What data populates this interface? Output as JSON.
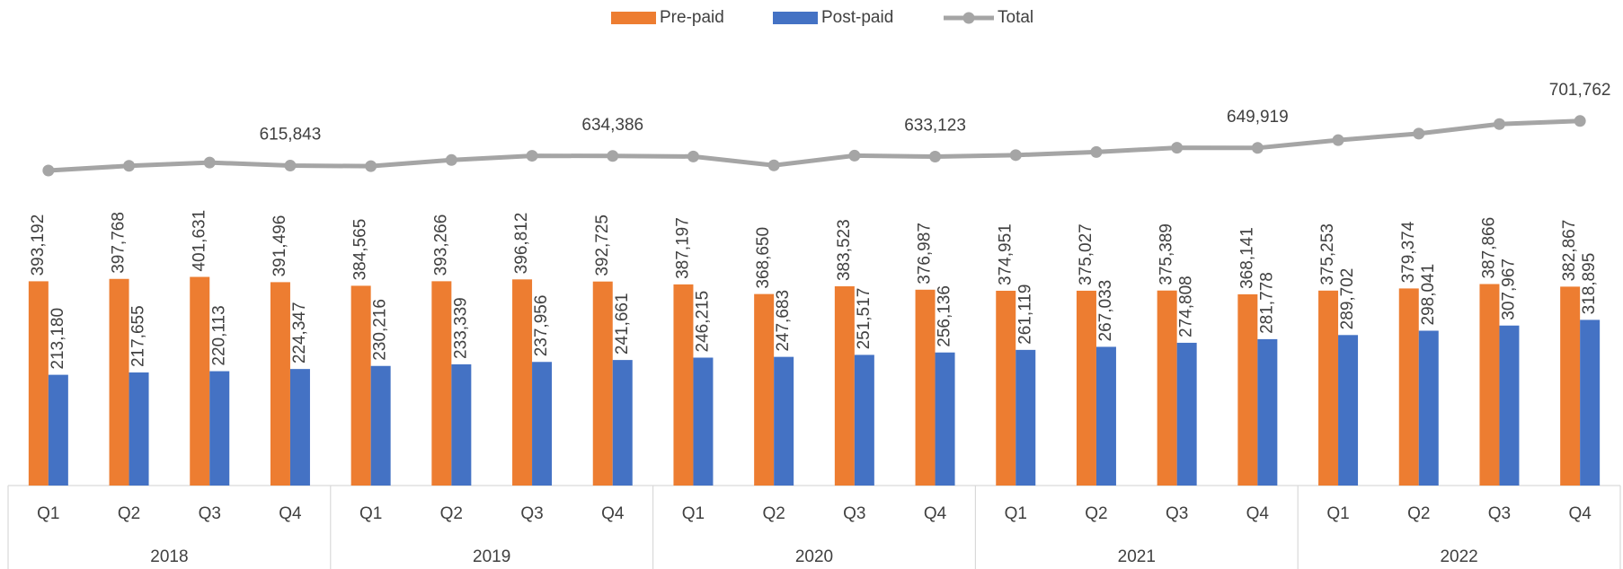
{
  "chart_data": {
    "type": "bar_line",
    "categories": [
      "Q1",
      "Q2",
      "Q3",
      "Q4",
      "Q1",
      "Q2",
      "Q3",
      "Q4",
      "Q1",
      "Q2",
      "Q3",
      "Q4",
      "Q1",
      "Q2",
      "Q3",
      "Q4",
      "Q1",
      "Q2",
      "Q3",
      "Q4"
    ],
    "groups": [
      "2018",
      "2019",
      "2020",
      "2021",
      "2022"
    ],
    "ylim": [
      0,
      850000
    ],
    "legend": "top",
    "series": [
      {
        "name": "Pre-paid",
        "kind": "bar",
        "color": "#ED7D31",
        "values": [
          393192,
          397768,
          401631,
          391496,
          384565,
          393266,
          396812,
          392725,
          387197,
          368650,
          383523,
          376987,
          374951,
          375027,
          375389,
          368141,
          375253,
          379374,
          387866,
          382867
        ],
        "value_labels": [
          "393,192",
          "397,768",
          "401,631",
          "391,496",
          "384,565",
          "393,266",
          "396,812",
          "392,725",
          "387,197",
          "368,650",
          "383,523",
          "376,987",
          "374,951",
          "375,027",
          "375,389",
          "368,141",
          "375,253",
          "379,374",
          "387,866",
          "382,867"
        ]
      },
      {
        "name": "Post-paid",
        "kind": "bar",
        "color": "#4472C4",
        "values": [
          213180,
          217655,
          220113,
          224347,
          230216,
          233339,
          237956,
          241661,
          246215,
          247683,
          251517,
          256136,
          261119,
          267033,
          274808,
          281778,
          289702,
          298041,
          307967,
          318895
        ],
        "value_labels": [
          "213,180",
          "217,655",
          "220,113",
          "224,347",
          "230,216",
          "233,339",
          "237,956",
          "241,661",
          "246,215",
          "247,683",
          "251,517",
          "256,136",
          "261,119",
          "267,033",
          "274,808",
          "281,778",
          "289,702",
          "298,041",
          "307,967",
          "318,895"
        ]
      },
      {
        "name": "Total",
        "kind": "line",
        "color": "#A5A5A5",
        "values": [
          606372,
          615423,
          621744,
          615843,
          614781,
          626605,
          634768,
          634386,
          633412,
          616333,
          635040,
          633123,
          636070,
          642060,
          650197,
          649919,
          664955,
          677415,
          695833,
          701762
        ],
        "value_labels": [
          null,
          null,
          null,
          "615,843",
          null,
          null,
          null,
          "634,386",
          null,
          null,
          null,
          "633,123",
          null,
          null,
          null,
          "649,919",
          null,
          null,
          null,
          "701,762"
        ]
      }
    ]
  }
}
